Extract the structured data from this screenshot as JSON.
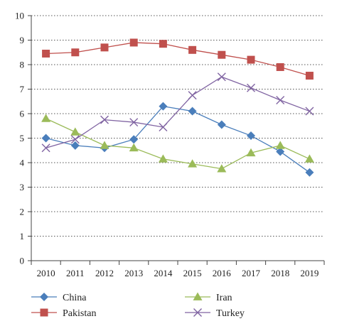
{
  "chart_data": {
    "type": "line",
    "title": "",
    "xlabel": "",
    "ylabel": "",
    "x": [
      "2010",
      "2011",
      "2012",
      "2013",
      "2014",
      "2015",
      "2016",
      "2017",
      "2018",
      "2019"
    ],
    "ylim": [
      0,
      10
    ],
    "yticks": [
      "0",
      "1",
      "2",
      "3",
      "4",
      "5",
      "6",
      "7",
      "8",
      "9",
      "10"
    ],
    "grid": "horizontal dotted",
    "legend_position": "bottom",
    "series": [
      {
        "name": "China",
        "color": "#4a7ebb",
        "marker": "diamond",
        "values": [
          5.0,
          4.7,
          4.6,
          4.95,
          6.3,
          6.1,
          5.55,
          5.1,
          4.45,
          3.6
        ]
      },
      {
        "name": "Pakistan",
        "color": "#c0504d",
        "marker": "square",
        "values": [
          8.45,
          8.5,
          8.7,
          8.9,
          8.85,
          8.6,
          8.4,
          8.2,
          7.9,
          7.55
        ]
      },
      {
        "name": "Iran",
        "color": "#9bbb59",
        "marker": "triangle",
        "values": [
          5.8,
          5.25,
          4.7,
          4.6,
          4.15,
          3.95,
          3.75,
          4.4,
          4.7,
          4.15
        ]
      },
      {
        "name": "Turkey",
        "color": "#8064a2",
        "marker": "x",
        "values": [
          4.6,
          4.95,
          5.75,
          5.65,
          5.45,
          6.75,
          7.5,
          7.05,
          6.55,
          6.1
        ]
      }
    ]
  }
}
